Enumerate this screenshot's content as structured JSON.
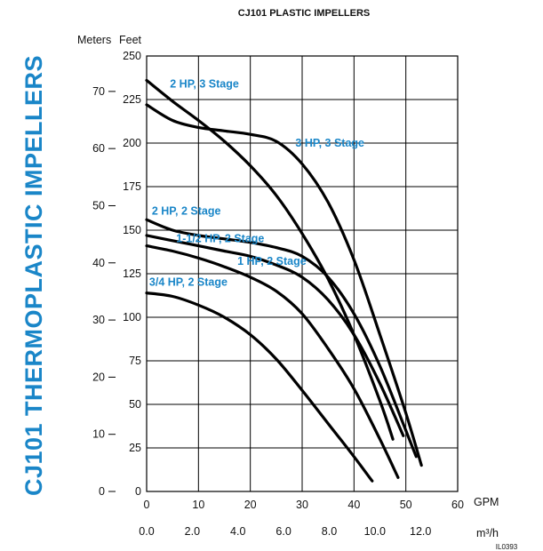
{
  "side_title": "CJ101 THERMOPLASTIC IMPELLERS",
  "figure_code": "IL0393",
  "chart_data": {
    "type": "line",
    "title": "CJ101 PLASTIC IMPELLERS",
    "x_axis": {
      "unit": "GPM",
      "range": [
        0,
        60
      ],
      "ticks": [
        0,
        10,
        20,
        30,
        40,
        50,
        60
      ]
    },
    "x2_axis": {
      "unit": "m³/h",
      "ticks": [
        "0.0",
        "2.0",
        "4.0",
        "6.0",
        "8.0",
        "10.0",
        "12.0"
      ]
    },
    "y_axis": {
      "unit": "Feet",
      "range": [
        0,
        250
      ],
      "ticks": [
        0,
        25,
        50,
        75,
        100,
        125,
        150,
        175,
        200,
        225,
        250
      ]
    },
    "y2_axis": {
      "unit": "Meters",
      "ticks": [
        0,
        10,
        20,
        30,
        40,
        50,
        60,
        70
      ]
    },
    "grid": true,
    "series": [
      {
        "name": "2 HP, 3 Stage",
        "x": [
          0,
          5,
          10,
          15,
          20,
          25,
          30,
          35,
          40,
          45,
          47.5
        ],
        "y": [
          236,
          224,
          213,
          201,
          187,
          170,
          148,
          122,
          90,
          52,
          30
        ]
      },
      {
        "name": "3 HP, 3 Stage",
        "x": [
          0,
          5,
          10,
          15,
          20,
          25,
          30,
          35,
          40,
          45,
          50,
          53
        ],
        "y": [
          222,
          213,
          209,
          207,
          205,
          201,
          188,
          166,
          133,
          90,
          45,
          15
        ]
      },
      {
        "name": "2 HP, 2 Stage",
        "x": [
          0,
          5,
          10,
          15,
          20,
          25,
          30,
          35,
          40,
          45,
          50,
          52
        ],
        "y": [
          156,
          150,
          147,
          145,
          143,
          140,
          135,
          123,
          102,
          72,
          35,
          20
        ]
      },
      {
        "name": "1-1/2 HP, 2 Stage",
        "x": [
          0,
          5,
          10,
          15,
          20,
          25,
          30,
          35,
          40,
          45,
          49.5
        ],
        "y": [
          147,
          144,
          141,
          138,
          135,
          130,
          123,
          110,
          90,
          62,
          32
        ]
      },
      {
        "name": "1 HP, 2 Stage",
        "x": [
          0,
          5,
          10,
          15,
          20,
          25,
          30,
          35,
          40,
          45,
          48.5
        ],
        "y": [
          141,
          138,
          134,
          129,
          123,
          115,
          102,
          82,
          59,
          30,
          8
        ]
      },
      {
        "name": "3/4 HP, 2 Stage",
        "x": [
          0,
          5,
          10,
          15,
          20,
          25,
          30,
          35,
          40,
          43.5
        ],
        "y": [
          114,
          112,
          107,
          100,
          90,
          76,
          58,
          39,
          20,
          6
        ]
      }
    ],
    "annotations": [
      {
        "text": "2 HP, 3 Stage",
        "x": 4.5,
        "y": 232
      },
      {
        "text": "3 HP, 3 Stage",
        "x": 28.7,
        "y": 198
      },
      {
        "text": "2 HP, 2 Stage",
        "x": 1.0,
        "y": 159
      },
      {
        "text": "1-1/2 HP, 2 Stage",
        "x": 5.7,
        "y": 143
      },
      {
        "text": "1 HP, 2 Stage",
        "x": 17.5,
        "y": 130
      },
      {
        "text": "3/4 HP, 2 Stage",
        "x": 0.5,
        "y": 118
      }
    ]
  }
}
